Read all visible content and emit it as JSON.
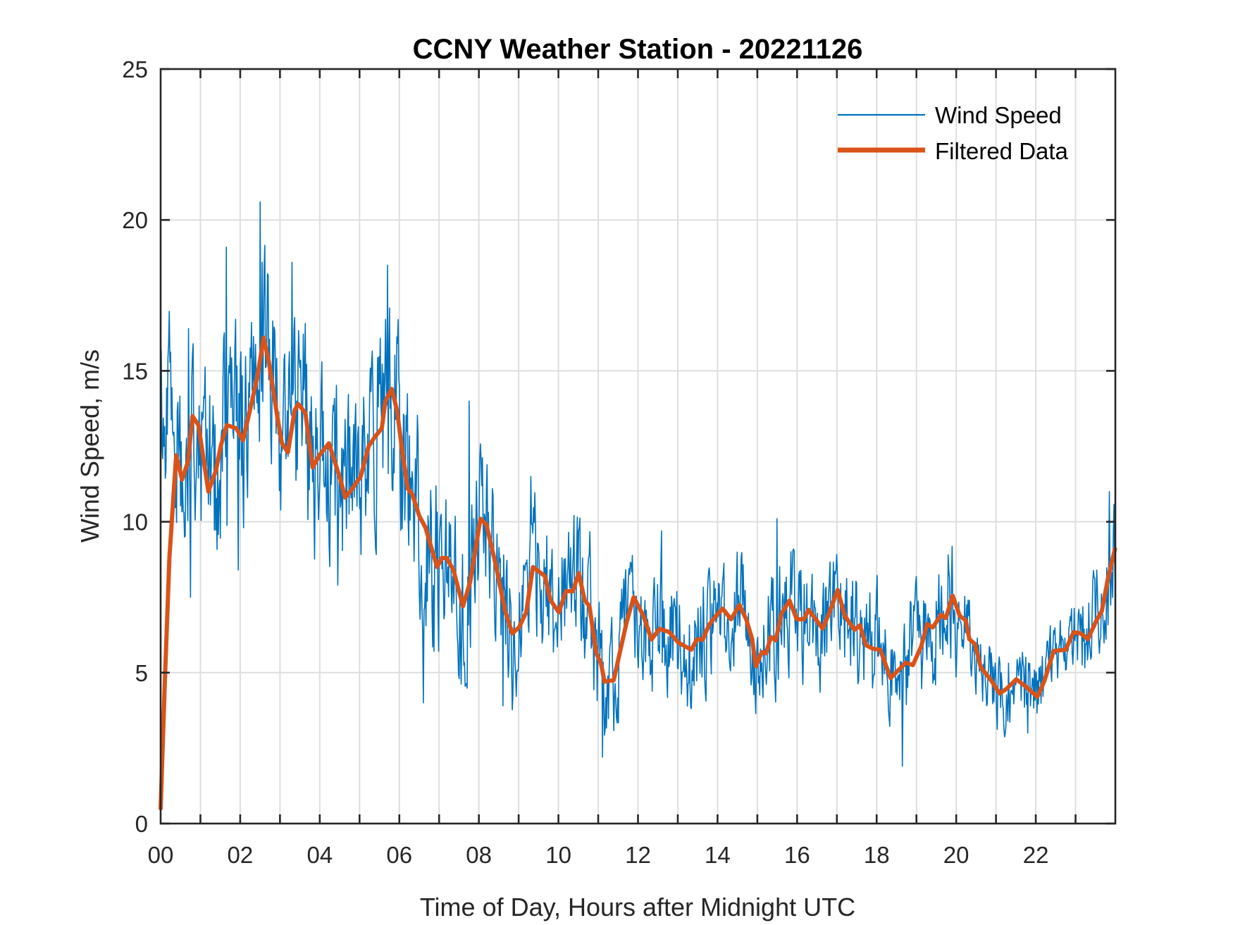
{
  "chart_data": {
    "type": "line",
    "title": "CCNY Weather Station - 20221126",
    "xlabel": "Time of Day, Hours after Midnight UTC",
    "ylabel": "Wind Speed, m/s",
    "xlim": [
      0,
      24
    ],
    "ylim": [
      0,
      25
    ],
    "x_ticks": [
      0,
      2,
      4,
      6,
      8,
      10,
      12,
      14,
      16,
      18,
      20,
      22
    ],
    "x_tick_labels": [
      "00",
      "02",
      "04",
      "06",
      "08",
      "10",
      "12",
      "14",
      "16",
      "18",
      "20",
      "22"
    ],
    "x_minor_grid_step_hours": 1,
    "y_ticks": [
      0,
      5,
      10,
      15,
      20,
      25
    ],
    "y_tick_labels": [
      "0",
      "5",
      "10",
      "15",
      "20",
      "25"
    ],
    "grid": true,
    "legend": {
      "placement": "top-right",
      "boxed": false
    },
    "series": [
      {
        "name": "Wind Speed",
        "color": "#0072BD",
        "style": "thin",
        "description": "Raw ~1-minute wind speed samples; plotted as noisy signal around the filtered trend",
        "noise_envelope": [
          {
            "from_hour": 0,
            "to_hour": 7,
            "amplitude": 3.4
          },
          {
            "from_hour": 7,
            "to_hour": 11,
            "amplitude": 2.6
          },
          {
            "from_hour": 11,
            "to_hour": 20,
            "amplitude": 2.1
          },
          {
            "from_hour": 20,
            "to_hour": 23,
            "amplitude": 1.3
          },
          {
            "from_hour": 23,
            "to_hour": 24,
            "amplitude": 1.8
          }
        ],
        "notable_points": [
          {
            "hour": 0.0,
            "value": 15.8
          },
          {
            "hour": 0.7,
            "value": 16.4
          },
          {
            "hour": 0.75,
            "value": 7.5
          },
          {
            "hour": 1.65,
            "value": 19.1
          },
          {
            "hour": 1.95,
            "value": 8.4
          },
          {
            "hour": 2.5,
            "value": 20.6
          },
          {
            "hour": 2.55,
            "value": 18.6
          },
          {
            "hour": 3.3,
            "value": 18.6
          },
          {
            "hour": 4.45,
            "value": 7.9
          },
          {
            "hour": 5.7,
            "value": 18.5
          },
          {
            "hour": 6.6,
            "value": 4.0
          },
          {
            "hour": 7.75,
            "value": 14.0
          },
          {
            "hour": 8.6,
            "value": 3.9
          },
          {
            "hour": 9.3,
            "value": 11.5
          },
          {
            "hour": 11.1,
            "value": 2.2
          },
          {
            "hour": 12.6,
            "value": 9.7
          },
          {
            "hour": 15.5,
            "value": 10.1
          },
          {
            "hour": 18.65,
            "value": 1.9
          },
          {
            "hour": 19.8,
            "value": 8.9
          },
          {
            "hour": 21.3,
            "value": 3.4
          },
          {
            "hour": 21.8,
            "value": 3.0
          },
          {
            "hour": 23.85,
            "value": 11.0
          },
          {
            "hour": 24.0,
            "value": 7.9
          }
        ]
      },
      {
        "name": "Filtered Data",
        "color": "#D95319",
        "style": "thick",
        "points": [
          [
            0,
            0.5
          ],
          [
            0.1,
            4.5
          ],
          [
            0.22,
            8.8
          ],
          [
            0.39,
            12.2
          ],
          [
            0.54,
            11.4
          ],
          [
            0.69,
            12.0
          ],
          [
            0.8,
            13.5
          ],
          [
            0.95,
            13.2
          ],
          [
            1.2,
            11.0
          ],
          [
            1.39,
            11.7
          ],
          [
            1.51,
            12.5
          ],
          [
            1.66,
            13.2
          ],
          [
            1.9,
            13.1
          ],
          [
            2.07,
            12.7
          ],
          [
            2.28,
            13.9
          ],
          [
            2.43,
            14.8
          ],
          [
            2.59,
            16.1
          ],
          [
            2.72,
            15.3
          ],
          [
            2.93,
            13.5
          ],
          [
            3.05,
            12.6
          ],
          [
            3.2,
            12.3
          ],
          [
            3.37,
            13.7
          ],
          [
            3.46,
            13.9
          ],
          [
            3.64,
            13.6
          ],
          [
            3.82,
            11.8
          ],
          [
            3.99,
            12.2
          ],
          [
            4.23,
            12.6
          ],
          [
            4.52,
            11.4
          ],
          [
            4.64,
            10.8
          ],
          [
            4.82,
            11.1
          ],
          [
            5.03,
            11.5
          ],
          [
            5.23,
            12.5
          ],
          [
            5.38,
            12.8
          ],
          [
            5.56,
            13.1
          ],
          [
            5.65,
            14.0
          ],
          [
            5.81,
            14.4
          ],
          [
            5.94,
            13.7
          ],
          [
            6.09,
            12.2
          ],
          [
            6.21,
            11.1
          ],
          [
            6.33,
            10.9
          ],
          [
            6.5,
            10.2
          ],
          [
            6.66,
            9.8
          ],
          [
            6.95,
            8.5
          ],
          [
            7.07,
            8.8
          ],
          [
            7.19,
            8.8
          ],
          [
            7.36,
            8.4
          ],
          [
            7.6,
            7.2
          ],
          [
            7.78,
            8.0
          ],
          [
            8.04,
            10.1
          ],
          [
            8.19,
            9.9
          ],
          [
            8.42,
            8.6
          ],
          [
            8.66,
            7.05
          ],
          [
            8.84,
            6.3
          ],
          [
            9.01,
            6.5
          ],
          [
            9.19,
            7.0
          ],
          [
            9.36,
            8.5
          ],
          [
            9.66,
            8.2
          ],
          [
            9.8,
            7.4
          ],
          [
            10.01,
            7.0
          ],
          [
            10.19,
            7.7
          ],
          [
            10.36,
            7.7
          ],
          [
            10.51,
            8.3
          ],
          [
            10.66,
            7.4
          ],
          [
            10.78,
            7.2
          ],
          [
            10.95,
            5.65
          ],
          [
            11.07,
            5.3
          ],
          [
            11.16,
            4.7
          ],
          [
            11.39,
            4.75
          ],
          [
            11.54,
            5.65
          ],
          [
            11.72,
            6.7
          ],
          [
            11.89,
            7.5
          ],
          [
            12.13,
            6.9
          ],
          [
            12.34,
            6.1
          ],
          [
            12.54,
            6.45
          ],
          [
            12.78,
            6.35
          ],
          [
            13.01,
            6.0
          ],
          [
            13.34,
            5.76
          ],
          [
            13.48,
            6.1
          ],
          [
            13.63,
            6.1
          ],
          [
            13.78,
            6.57
          ],
          [
            13.96,
            6.88
          ],
          [
            14.13,
            7.12
          ],
          [
            14.34,
            6.77
          ],
          [
            14.55,
            7.24
          ],
          [
            14.72,
            6.77
          ],
          [
            14.87,
            6.11
          ],
          [
            14.96,
            5.21
          ],
          [
            15.11,
            5.68
          ],
          [
            15.22,
            5.64
          ],
          [
            15.34,
            6.18
          ],
          [
            15.46,
            6.07
          ],
          [
            15.61,
            6.96
          ],
          [
            15.81,
            7.39
          ],
          [
            15.99,
            6.77
          ],
          [
            16.17,
            6.77
          ],
          [
            16.29,
            7.08
          ],
          [
            16.49,
            6.73
          ],
          [
            16.64,
            6.46
          ],
          [
            16.79,
            6.92
          ],
          [
            17.02,
            7.74
          ],
          [
            17.2,
            6.88
          ],
          [
            17.44,
            6.42
          ],
          [
            17.58,
            6.57
          ],
          [
            17.73,
            5.91
          ],
          [
            17.91,
            5.79
          ],
          [
            18.09,
            5.76
          ],
          [
            18.35,
            4.82
          ],
          [
            18.5,
            5.02
          ],
          [
            18.73,
            5.33
          ],
          [
            18.91,
            5.25
          ],
          [
            19.12,
            5.87
          ],
          [
            19.27,
            6.61
          ],
          [
            19.41,
            6.5
          ],
          [
            19.62,
            6.92
          ],
          [
            19.74,
            6.81
          ],
          [
            19.91,
            7.55
          ],
          [
            20.09,
            6.88
          ],
          [
            20.24,
            6.73
          ],
          [
            20.33,
            6.11
          ],
          [
            20.47,
            5.95
          ],
          [
            20.62,
            5.17
          ],
          [
            20.86,
            4.78
          ],
          [
            21.09,
            4.31
          ],
          [
            21.27,
            4.47
          ],
          [
            21.51,
            4.78
          ],
          [
            21.74,
            4.55
          ],
          [
            22.04,
            4.2
          ],
          [
            22.22,
            4.74
          ],
          [
            22.45,
            5.72
          ],
          [
            22.75,
            5.76
          ],
          [
            22.95,
            6.34
          ],
          [
            23.13,
            6.3
          ],
          [
            23.31,
            6.11
          ],
          [
            23.51,
            6.69
          ],
          [
            23.66,
            7.04
          ],
          [
            23.81,
            8.09
          ],
          [
            23.99,
            9.1
          ]
        ]
      }
    ]
  }
}
